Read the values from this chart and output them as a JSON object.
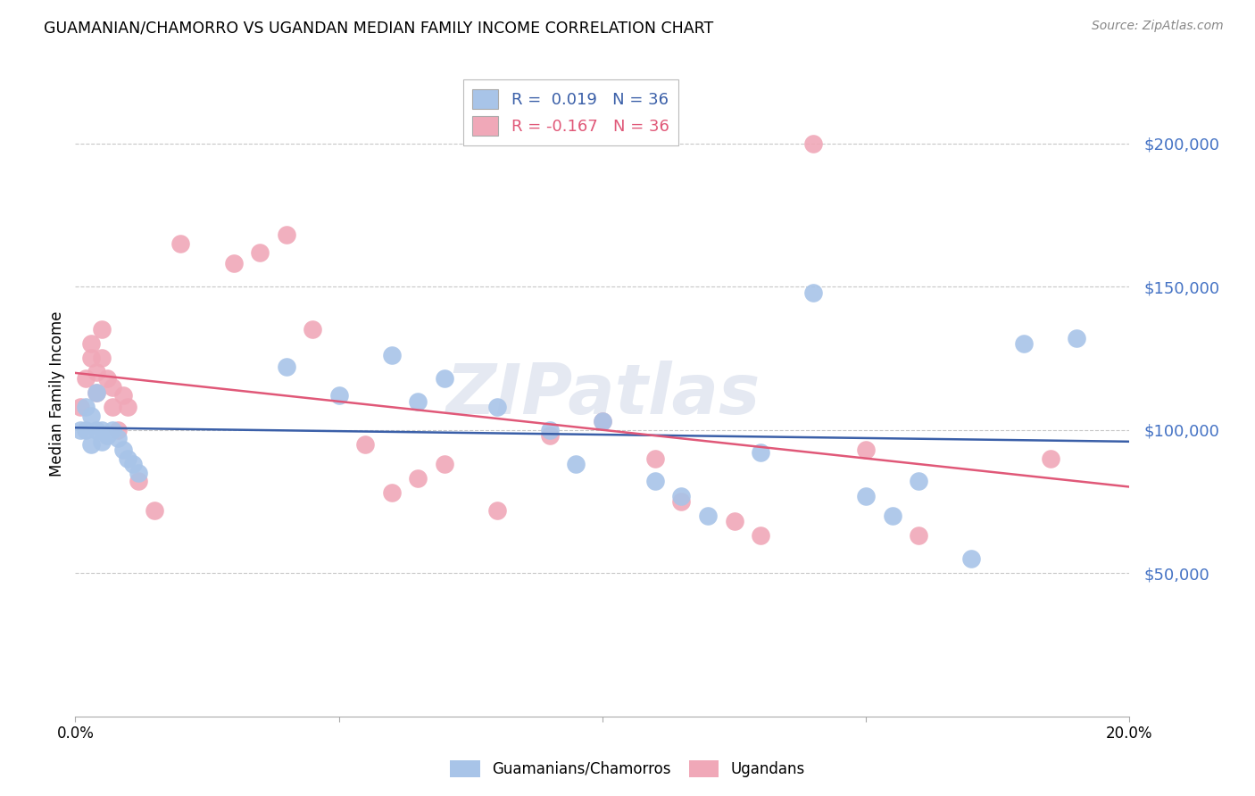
{
  "title": "GUAMANIAN/CHAMORRO VS UGANDAN MEDIAN FAMILY INCOME CORRELATION CHART",
  "source": "Source: ZipAtlas.com",
  "ylabel": "Median Family Income",
  "xlim": [
    0.0,
    0.2
  ],
  "ylim": [
    0,
    225000
  ],
  "yticks": [
    50000,
    100000,
    150000,
    200000
  ],
  "xticks": [
    0.0,
    0.05,
    0.1,
    0.15,
    0.2
  ],
  "xtick_labels": [
    "0.0%",
    "",
    "",
    "",
    "20.0%"
  ],
  "background_color": "#ffffff",
  "grid_color": "#c8c8c8",
  "blue_dot_color": "#a8c4e8",
  "pink_dot_color": "#f0a8b8",
  "blue_line_color": "#3a5fa8",
  "pink_line_color": "#e05878",
  "tick_label_color": "#4472c4",
  "legend_blue_label": "R =  0.019   N = 36",
  "legend_pink_label": "R = -0.167   N = 36",
  "watermark": "ZIPatlas",
  "blue_scatter_x": [
    0.001,
    0.002,
    0.002,
    0.003,
    0.003,
    0.004,
    0.004,
    0.005,
    0.005,
    0.006,
    0.007,
    0.008,
    0.009,
    0.01,
    0.011,
    0.012,
    0.04,
    0.05,
    0.06,
    0.065,
    0.07,
    0.08,
    0.09,
    0.095,
    0.1,
    0.11,
    0.115,
    0.12,
    0.13,
    0.14,
    0.15,
    0.155,
    0.16,
    0.17,
    0.18,
    0.19
  ],
  "blue_scatter_y": [
    100000,
    108000,
    100000,
    105000,
    95000,
    100000,
    113000,
    100000,
    96000,
    98000,
    100000,
    97000,
    93000,
    90000,
    88000,
    85000,
    122000,
    112000,
    126000,
    110000,
    118000,
    108000,
    100000,
    88000,
    103000,
    82000,
    77000,
    70000,
    92000,
    148000,
    77000,
    70000,
    82000,
    55000,
    130000,
    132000
  ],
  "pink_scatter_x": [
    0.001,
    0.002,
    0.003,
    0.003,
    0.004,
    0.004,
    0.005,
    0.005,
    0.006,
    0.007,
    0.007,
    0.008,
    0.009,
    0.01,
    0.012,
    0.015,
    0.02,
    0.03,
    0.035,
    0.04,
    0.045,
    0.055,
    0.06,
    0.065,
    0.07,
    0.08,
    0.09,
    0.1,
    0.11,
    0.115,
    0.125,
    0.13,
    0.14,
    0.15,
    0.16,
    0.185
  ],
  "pink_scatter_y": [
    108000,
    118000,
    130000,
    125000,
    113000,
    120000,
    125000,
    135000,
    118000,
    108000,
    115000,
    100000,
    112000,
    108000,
    82000,
    72000,
    165000,
    158000,
    162000,
    168000,
    135000,
    95000,
    78000,
    83000,
    88000,
    72000,
    98000,
    103000,
    90000,
    75000,
    68000,
    63000,
    200000,
    93000,
    63000,
    90000
  ]
}
